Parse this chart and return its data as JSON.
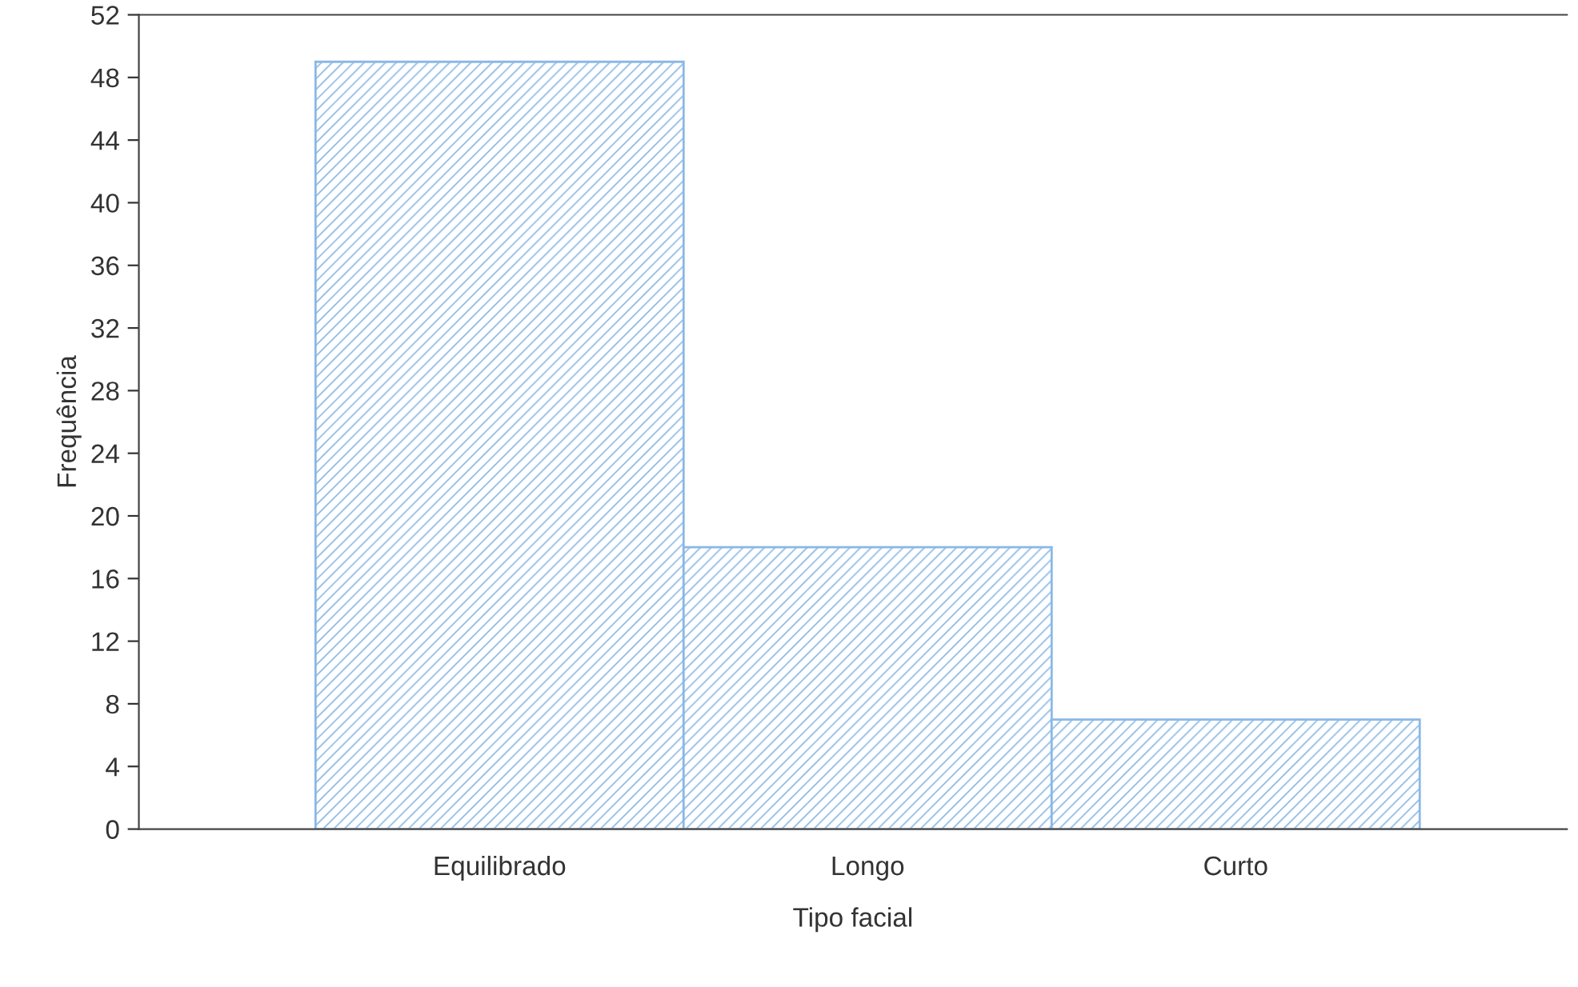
{
  "chart_data": {
    "type": "bar",
    "xlabel": "Tipo facial",
    "ylabel": "Frequência",
    "categories": [
      "Equilibrado",
      "Longo",
      "Curto"
    ],
    "values": [
      49,
      18,
      7
    ],
    "color": "#8ab8e6",
    "ylim": [
      0,
      52
    ],
    "yticks": [
      0,
      4,
      8,
      12,
      16,
      20,
      24,
      28,
      32,
      36,
      40,
      44,
      48,
      52
    ],
    "grid": false
  }
}
